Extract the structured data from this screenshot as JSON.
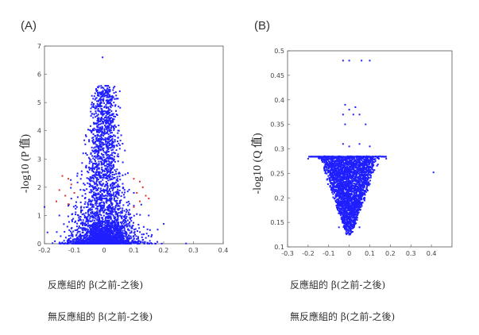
{
  "panels": [
    {
      "label": "(A)",
      "ylabel": "-log10 (P 值)"
    },
    {
      "label": "(B)",
      "ylabel": "-log10 (Q 值)"
    }
  ],
  "captions": {
    "a": [
      "反應組的 β(之前-之後)",
      "無反應組的 β(之前-之後)"
    ],
    "b": [
      "反應組的 β(之前-之後)",
      "無反應組的 β(之前-之後)"
    ]
  },
  "colors": {
    "main": "#1f1fff",
    "highlight": "#e03030",
    "axis": "#555555"
  },
  "chart_data": [
    {
      "type": "scatter",
      "title": "",
      "xlabel": "",
      "ylabel": "-log10 (P 值)",
      "xlim": [
        -0.2,
        0.4
      ],
      "ylim": [
        0,
        7
      ],
      "xticks": [
        -0.2,
        -0.1,
        0,
        0.1,
        0.2,
        0.3,
        0.4
      ],
      "xtick_labels": [
        "-0.2",
        "-0.1",
        "0",
        "0.1",
        "0.2",
        "0.3",
        "0.4"
      ],
      "yticks": [
        0,
        1,
        2,
        3,
        4,
        5,
        6,
        7
      ],
      "ytick_labels": [
        "0",
        "1",
        "2",
        "3",
        "4",
        "5",
        "6",
        "7"
      ],
      "grid": false,
      "series": [
        {
          "color": "#1f1fff",
          "shape": "volcano",
          "points": [
            [
              -0.005,
              6.6
            ],
            [
              0.02,
              5.4
            ],
            [
              -0.03,
              5.1
            ],
            [
              0.04,
              4.7
            ],
            [
              -0.04,
              4.6
            ],
            [
              0.01,
              4.3
            ],
            [
              -0.02,
              4.2
            ],
            [
              0.05,
              4.0
            ],
            [
              -0.06,
              3.8
            ],
            [
              0.03,
              3.6
            ],
            [
              -0.01,
              3.5
            ],
            [
              0.07,
              3.3
            ],
            [
              -0.07,
              3.2
            ],
            [
              0.08,
              2.5
            ],
            [
              -0.09,
              2.4
            ],
            [
              0.1,
              1.8
            ],
            [
              -0.11,
              1.6
            ],
            [
              -0.15,
              1.0
            ],
            [
              0.15,
              1.0
            ],
            [
              -0.19,
              0.4
            ],
            [
              0.18,
              0.5
            ],
            [
              -0.2,
              1.3
            ]
          ]
        },
        {
          "color": "#e03030",
          "points": [
            [
              -0.14,
              2.4
            ],
            [
              -0.12,
              2.3
            ],
            [
              -0.11,
              2.1
            ],
            [
              -0.15,
              1.9
            ],
            [
              -0.1,
              1.8
            ],
            [
              -0.13,
              1.7
            ],
            [
              -0.16,
              1.5
            ],
            [
              -0.12,
              1.4
            ],
            [
              0.1,
              2.3
            ],
            [
              0.12,
              2.2
            ],
            [
              0.13,
              2.0
            ],
            [
              0.11,
              1.8
            ],
            [
              0.14,
              1.7
            ],
            [
              0.12,
              1.5
            ],
            [
              0.1,
              1.3
            ],
            [
              0.15,
              1.6
            ]
          ]
        }
      ]
    },
    {
      "type": "scatter",
      "title": "",
      "xlabel": "",
      "ylabel": "-log10 (Q 值)",
      "xlim": [
        -0.3,
        0.5
      ],
      "ylim": [
        0.1,
        0.5
      ],
      "xticks": [
        -0.3,
        -0.2,
        -0.1,
        0,
        0.1,
        0.2,
        0.3,
        0.4
      ],
      "xtick_labels": [
        "-0.3",
        "-0.2",
        "-0.1",
        "0",
        "0.1",
        "0.2",
        "0.3",
        "0.4"
      ],
      "yticks": [
        0.1,
        0.15,
        0.2,
        0.25,
        0.3,
        0.35,
        0.4,
        0.45,
        0.5
      ],
      "ytick_labels": [
        "0.1",
        "0.15",
        "0.2",
        "0.25",
        "0.3",
        "0.35",
        "0.4",
        "0.45",
        "0.5"
      ],
      "grid": false,
      "series": [
        {
          "color": "#1f1fff",
          "shape": "funnel",
          "points": [
            [
              -0.12,
              0.285
            ],
            [
              0.15,
              0.285
            ],
            [
              -0.2,
              0.28
            ],
            [
              0.18,
              0.28
            ],
            [
              0.0,
              0.125
            ],
            [
              -0.05,
              0.14
            ],
            [
              0.05,
              0.14
            ],
            [
              0.41,
              0.252
            ],
            [
              -0.03,
              0.48
            ],
            [
              0.0,
              0.48
            ],
            [
              0.06,
              0.48
            ],
            [
              0.1,
              0.48
            ],
            [
              -0.02,
              0.39
            ],
            [
              0.0,
              0.38
            ],
            [
              0.03,
              0.385
            ],
            [
              -0.03,
              0.37
            ],
            [
              0.02,
              0.37
            ],
            [
              0.05,
              0.37
            ],
            [
              -0.02,
              0.35
            ],
            [
              0.08,
              0.35
            ],
            [
              -0.03,
              0.31
            ],
            [
              0.0,
              0.305
            ],
            [
              0.05,
              0.31
            ],
            [
              0.1,
              0.305
            ]
          ]
        }
      ]
    }
  ]
}
